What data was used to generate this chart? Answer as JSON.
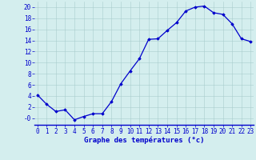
{
  "hours": [
    0,
    1,
    2,
    3,
    4,
    5,
    6,
    7,
    8,
    9,
    10,
    11,
    12,
    13,
    14,
    15,
    16,
    17,
    18,
    19,
    20,
    21,
    22,
    23
  ],
  "temps": [
    4.2,
    2.5,
    1.2,
    1.5,
    -0.3,
    0.3,
    0.8,
    0.8,
    3.0,
    6.2,
    8.5,
    10.7,
    14.2,
    14.3,
    15.8,
    17.2,
    19.3,
    20.0,
    20.2,
    19.0,
    18.7,
    17.0,
    14.3,
    13.8
  ],
  "line_color": "#0000cc",
  "marker": "D",
  "marker_size": 1.8,
  "bg_color": "#d4eeee",
  "grid_color": "#aacccc",
  "ylabel_ticks": [
    0,
    2,
    4,
    6,
    8,
    10,
    12,
    14,
    16,
    18,
    20
  ],
  "ylabel_labels": [
    "-0",
    "2",
    "4",
    "6",
    "8",
    "10",
    "12",
    "14",
    "16",
    "18",
    "20"
  ],
  "ylim": [
    -1.2,
    21.0
  ],
  "xlim": [
    -0.3,
    23.3
  ],
  "xlabel": "Graphe des températures (°c)",
  "xlabel_fontsize": 6.5,
  "tick_fontsize": 5.5,
  "linewidth": 0.9
}
